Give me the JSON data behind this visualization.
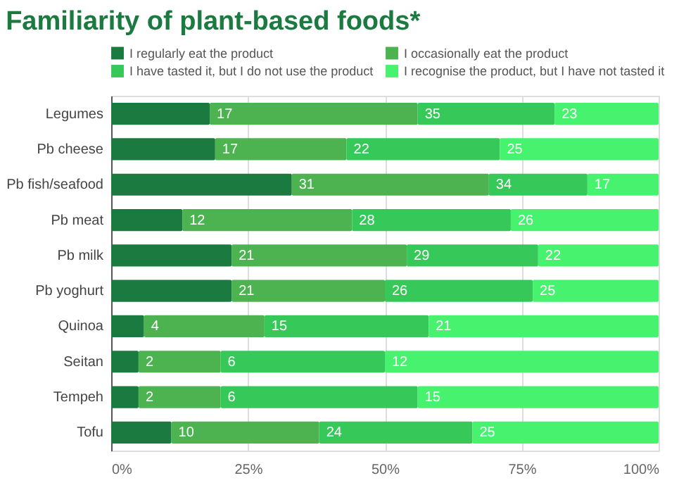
{
  "chart_data": {
    "type": "bar",
    "orientation": "horizontal",
    "stacked": true,
    "title": "Familiarity of plant-based foods*",
    "categories": [
      "Legumes",
      "Pb cheese",
      "Pb fish/seafood",
      "Pb meat",
      "Pb milk",
      "Pb yoghurt",
      "Quinoa",
      "Seitan",
      "Tempeh",
      "Tofu"
    ],
    "series": [
      {
        "name": "I regularly eat the product",
        "color": "#1a7a40",
        "values": [
          18,
          19,
          33,
          13,
          22,
          22,
          6,
          5,
          5,
          11
        ]
      },
      {
        "name": "I occasionally eat the product",
        "color": "#4cb350",
        "values": [
          38,
          24,
          36,
          31,
          32,
          28,
          22,
          15,
          15,
          27
        ]
      },
      {
        "name": "I have tasted it, but I do not use the product",
        "color": "#36c95a",
        "values": [
          25,
          28,
          18,
          29,
          24,
          27,
          30,
          30,
          36,
          28
        ]
      },
      {
        "name": "I recognise the product, but I have not tasted it",
        "color": "#47f26f",
        "values": [
          19,
          29,
          13,
          27,
          22,
          23,
          42,
          50,
          44,
          34
        ]
      }
    ],
    "annotations": [
      {
        "text": "17",
        "x": 18,
        "y": "Legumes"
      },
      {
        "text": "35",
        "x": 56,
        "y": "Legumes"
      },
      {
        "text": "23",
        "x": 81,
        "y": "Legumes"
      },
      {
        "text": "17",
        "x": 19,
        "y": "Pb cheese"
      },
      {
        "text": "22",
        "x": 43,
        "y": "Pb cheese"
      },
      {
        "text": "25",
        "x": 71,
        "y": "Pb cheese"
      },
      {
        "text": "31",
        "x": 33,
        "y": "Pb fish/seafood"
      },
      {
        "text": "34",
        "x": 69,
        "y": "Pb fish/seafood"
      },
      {
        "text": "17",
        "x": 87,
        "y": "Pb fish/seafood"
      },
      {
        "text": "12",
        "x": 13,
        "y": "Pb meat"
      },
      {
        "text": "28",
        "x": 44,
        "y": "Pb meat"
      },
      {
        "text": "26",
        "x": 73,
        "y": "Pb meat"
      },
      {
        "text": "21",
        "x": 22,
        "y": "Pb milk"
      },
      {
        "text": "29",
        "x": 54,
        "y": "Pb milk"
      },
      {
        "text": "22",
        "x": 78,
        "y": "Pb milk"
      },
      {
        "text": "21",
        "x": 22,
        "y": "Pb yoghurt"
      },
      {
        "text": "26",
        "x": 50,
        "y": "Pb yoghurt"
      },
      {
        "text": "25",
        "x": 77,
        "y": "Pb yoghurt"
      },
      {
        "text": "4",
        "x": 6,
        "y": "Quinoa"
      },
      {
        "text": "15",
        "x": 28,
        "y": "Quinoa"
      },
      {
        "text": "21",
        "x": 58,
        "y": "Quinoa"
      },
      {
        "text": "2",
        "x": 5,
        "y": "Seitan"
      },
      {
        "text": "6",
        "x": 20,
        "y": "Seitan"
      },
      {
        "text": "12",
        "x": 50,
        "y": "Seitan"
      },
      {
        "text": "2",
        "x": 5,
        "y": "Tempeh"
      },
      {
        "text": "6",
        "x": 20,
        "y": "Tempeh"
      },
      {
        "text": "15",
        "x": 56,
        "y": "Tempeh"
      },
      {
        "text": "10",
        "x": 11,
        "y": "Tofu"
      },
      {
        "text": "24",
        "x": 38,
        "y": "Tofu"
      },
      {
        "text": "25",
        "x": 66,
        "y": "Tofu"
      }
    ],
    "xlim": [
      0,
      100
    ],
    "xticks": [
      {
        "value": 0,
        "label": "0%"
      },
      {
        "value": 25,
        "label": "25%"
      },
      {
        "value": 50,
        "label": "50%"
      },
      {
        "value": 75,
        "label": "75%"
      },
      {
        "value": 100,
        "label": "100%"
      }
    ],
    "grid": "x",
    "legend": "top"
  }
}
